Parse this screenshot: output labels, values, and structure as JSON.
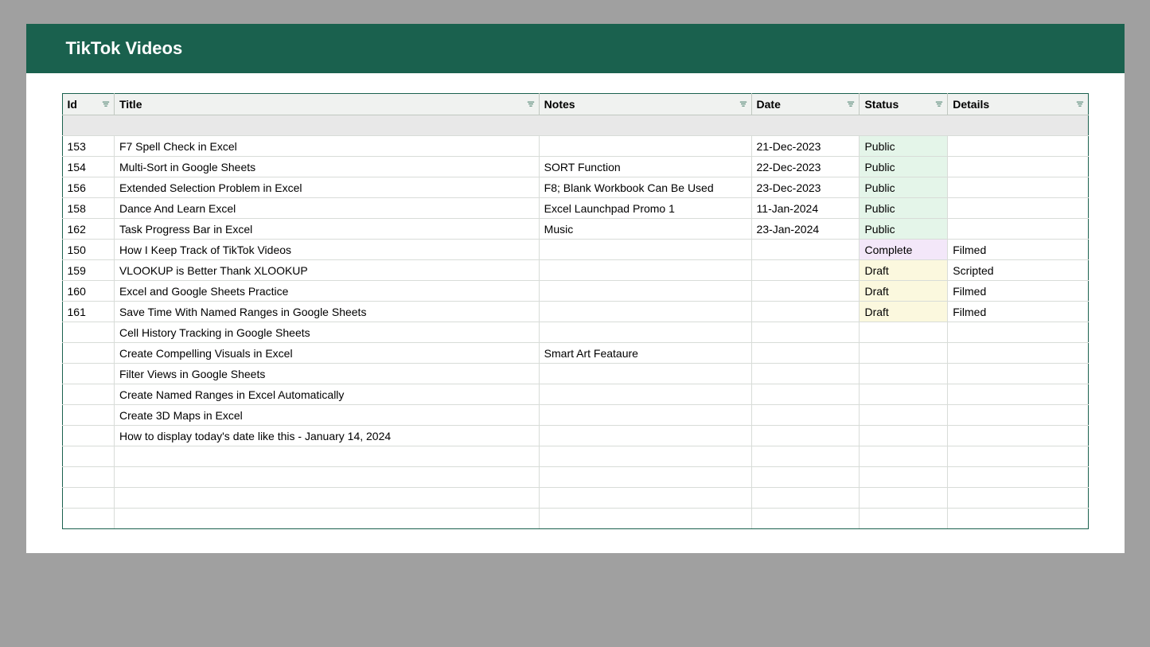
{
  "header": {
    "title": "TikTok Videos"
  },
  "table": {
    "columns": [
      {
        "key": "id",
        "label": "Id",
        "class": "col-id"
      },
      {
        "key": "title",
        "label": "Title",
        "class": "col-title"
      },
      {
        "key": "notes",
        "label": "Notes",
        "class": "col-notes"
      },
      {
        "key": "date",
        "label": "Date",
        "class": "col-date"
      },
      {
        "key": "status",
        "label": "Status",
        "class": "col-status"
      },
      {
        "key": "details",
        "label": "Details",
        "class": "col-details"
      }
    ],
    "status_colors": {
      "Public": "#e4f5e9",
      "Complete": "#f3e7f9",
      "Draft": "#fbf8de"
    },
    "rows": [
      {
        "id": "153",
        "title": "F7 Spell Check in Excel",
        "notes": "",
        "date": "21-Dec-2023",
        "status": "Public",
        "details": ""
      },
      {
        "id": "154",
        "title": "Multi-Sort in Google Sheets",
        "notes": "SORT Function",
        "date": "22-Dec-2023",
        "status": "Public",
        "details": ""
      },
      {
        "id": "156",
        "title": "Extended Selection Problem in Excel",
        "notes": "F8; Blank Workbook Can Be Used",
        "date": "23-Dec-2023",
        "status": "Public",
        "details": ""
      },
      {
        "id": "158",
        "title": "Dance And Learn Excel",
        "notes": "Excel Launchpad Promo 1",
        "date": "11-Jan-2024",
        "status": "Public",
        "details": ""
      },
      {
        "id": "162",
        "title": "Task Progress Bar in Excel",
        "notes": "Music",
        "date": "23-Jan-2024",
        "status": "Public",
        "details": ""
      },
      {
        "id": "150",
        "title": "How I Keep Track of TikTok Videos",
        "notes": "",
        "date": "",
        "status": "Complete",
        "details": "Filmed"
      },
      {
        "id": "159",
        "title": "VLOOKUP is Better Thank XLOOKUP",
        "notes": "",
        "date": "",
        "status": "Draft",
        "details": "Scripted"
      },
      {
        "id": "160",
        "title": "Excel and Google Sheets Practice",
        "notes": "",
        "date": "",
        "status": "Draft",
        "details": "Filmed"
      },
      {
        "id": "161",
        "title": "Save Time With Named Ranges in Google Sheets",
        "notes": "",
        "date": "",
        "status": "Draft",
        "details": "Filmed"
      },
      {
        "id": "",
        "title": "Cell History Tracking in Google Sheets",
        "notes": "",
        "date": "",
        "status": "",
        "details": ""
      },
      {
        "id": "",
        "title": "Create Compelling Visuals in Excel",
        "notes": "Smart Art Feataure",
        "date": "",
        "status": "",
        "details": ""
      },
      {
        "id": "",
        "title": "Filter Views in Google Sheets",
        "notes": "",
        "date": "",
        "status": "",
        "details": ""
      },
      {
        "id": "",
        "title": "Create Named Ranges in Excel Automatically",
        "notes": "",
        "date": "",
        "status": "",
        "details": ""
      },
      {
        "id": "",
        "title": "Create 3D Maps in Excel",
        "notes": "",
        "date": "",
        "status": "",
        "details": ""
      },
      {
        "id": "",
        "title": "How to display today's date like this - January 14, 2024",
        "notes": "",
        "date": "",
        "status": "",
        "details": ""
      },
      {
        "id": "",
        "title": "",
        "notes": "",
        "date": "",
        "status": "",
        "details": ""
      },
      {
        "id": "",
        "title": "",
        "notes": "",
        "date": "",
        "status": "",
        "details": ""
      },
      {
        "id": "",
        "title": "",
        "notes": "",
        "date": "",
        "status": "",
        "details": ""
      },
      {
        "id": "",
        "title": "",
        "notes": "",
        "date": "",
        "status": "",
        "details": ""
      }
    ]
  },
  "colors": {
    "frame": "#1a614e",
    "page_background": "#a0a0a0",
    "header_row": "#f0f2f0",
    "spacer_row": "#e8e8e8"
  }
}
